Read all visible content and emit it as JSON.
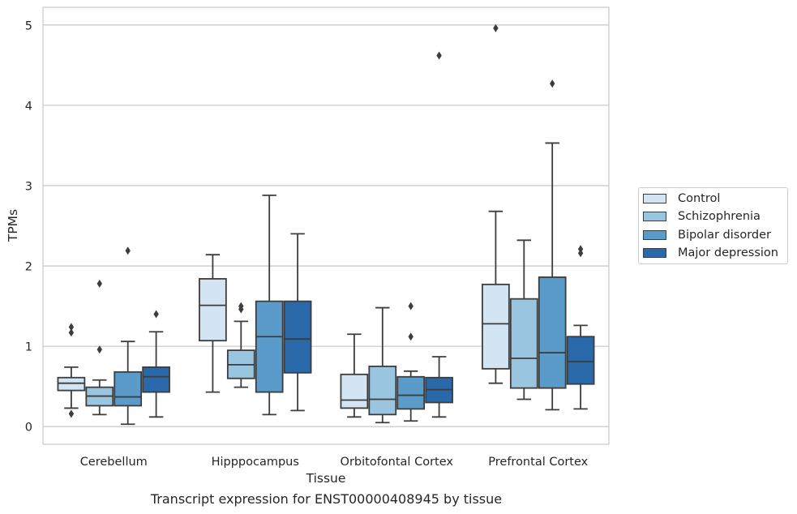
{
  "chart_data": {
    "type": "box",
    "caption": "Transcript expression for ENST00000408945 by tissue",
    "xlabel": "Tissue",
    "ylabel": "TPMs",
    "ylim": [
      -0.22,
      5.22
    ],
    "yticks": [
      0,
      1,
      2,
      3,
      4,
      5
    ],
    "grid": "horizontal",
    "legend_position": "right",
    "categories": [
      "Cerebellum",
      "Hipppocampus",
      "Orbitofontal Cortex",
      "Prefrontal Cortex"
    ],
    "series": [
      {
        "name": "Control",
        "color": "#d3e4f3",
        "boxes": [
          {
            "whisker_low": 0.23,
            "q1": 0.45,
            "median": 0.54,
            "q3": 0.61,
            "whisker_high": 0.74,
            "outliers": [
              1.24,
              1.17,
              0.16
            ]
          },
          {
            "whisker_low": 0.43,
            "q1": 1.07,
            "median": 1.51,
            "q3": 1.84,
            "whisker_high": 2.14,
            "outliers": []
          },
          {
            "whisker_low": 0.12,
            "q1": 0.23,
            "median": 0.33,
            "q3": 0.65,
            "whisker_high": 1.15,
            "outliers": []
          },
          {
            "whisker_low": 0.54,
            "q1": 0.72,
            "median": 1.28,
            "q3": 1.77,
            "whisker_high": 2.68,
            "outliers": [
              4.96
            ]
          }
        ]
      },
      {
        "name": "Schizophrenia",
        "color": "#9ac5e0",
        "boxes": [
          {
            "whisker_low": 0.15,
            "q1": 0.26,
            "median": 0.38,
            "q3": 0.49,
            "whisker_high": 0.58,
            "outliers": [
              1.78,
              0.96
            ]
          },
          {
            "whisker_low": 0.49,
            "q1": 0.6,
            "median": 0.77,
            "q3": 0.95,
            "whisker_high": 1.31,
            "outliers": [
              1.5,
              1.46
            ]
          },
          {
            "whisker_low": 0.05,
            "q1": 0.15,
            "median": 0.34,
            "q3": 0.75,
            "whisker_high": 1.48,
            "outliers": []
          },
          {
            "whisker_low": 0.34,
            "q1": 0.48,
            "median": 0.85,
            "q3": 1.59,
            "whisker_high": 2.32,
            "outliers": []
          }
        ]
      },
      {
        "name": "Bipolar disorder",
        "color": "#5a9bc9",
        "boxes": [
          {
            "whisker_low": 0.03,
            "q1": 0.26,
            "median": 0.37,
            "q3": 0.68,
            "whisker_high": 1.06,
            "outliers": [
              2.19
            ]
          },
          {
            "whisker_low": 0.15,
            "q1": 0.43,
            "median": 1.12,
            "q3": 1.56,
            "whisker_high": 2.88,
            "outliers": []
          },
          {
            "whisker_low": 0.07,
            "q1": 0.22,
            "median": 0.39,
            "q3": 0.62,
            "whisker_high": 0.69,
            "outliers": [
              1.5,
              1.12
            ]
          },
          {
            "whisker_low": 0.21,
            "q1": 0.48,
            "median": 0.92,
            "q3": 1.86,
            "whisker_high": 3.53,
            "outliers": [
              4.27
            ]
          }
        ]
      },
      {
        "name": "Major depression",
        "color": "#2a69a9",
        "boxes": [
          {
            "whisker_low": 0.12,
            "q1": 0.43,
            "median": 0.62,
            "q3": 0.74,
            "whisker_high": 1.18,
            "outliers": [
              1.4
            ]
          },
          {
            "whisker_low": 0.2,
            "q1": 0.67,
            "median": 1.09,
            "q3": 1.56,
            "whisker_high": 2.4,
            "outliers": []
          },
          {
            "whisker_low": 0.12,
            "q1": 0.3,
            "median": 0.46,
            "q3": 0.61,
            "whisker_high": 0.87,
            "outliers": [
              4.62
            ]
          },
          {
            "whisker_low": 0.22,
            "q1": 0.53,
            "median": 0.81,
            "q3": 1.12,
            "whisker_high": 1.26,
            "outliers": [
              2.21,
              2.16
            ]
          }
        ]
      }
    ]
  }
}
